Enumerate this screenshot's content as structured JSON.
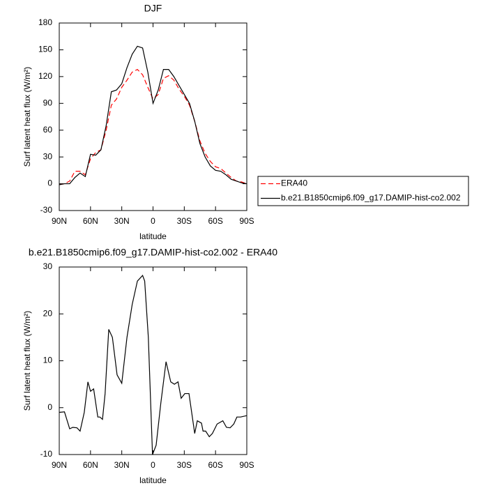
{
  "chart_data": [
    {
      "type": "line",
      "title": "DJF",
      "ylabel": "Surf latent heat flux (W/m²)",
      "xlabel": "latitude",
      "x": [
        90,
        85,
        80,
        75,
        70,
        65,
        60,
        55,
        50,
        45,
        40,
        35,
        30,
        25,
        20,
        15,
        10,
        5,
        0,
        -5,
        -10,
        -15,
        -20,
        -25,
        -30,
        -35,
        -40,
        -45,
        -50,
        -55,
        -60,
        -65,
        -70,
        -75,
        -80,
        -85,
        -90
      ],
      "series": [
        {
          "name": "ERA40",
          "color": "#ff0000",
          "dashed": true,
          "values": [
            -1,
            0,
            3,
            14,
            14,
            10,
            28,
            35,
            38,
            60,
            88,
            95,
            108,
            116,
            125,
            128,
            122,
            108,
            95,
            100,
            118,
            121,
            116,
            106,
            98,
            88,
            70,
            48,
            34,
            25,
            19,
            17,
            12,
            7,
            3,
            2,
            0
          ]
        },
        {
          "name": "b.e21.B1850cmip6.f09_g17.DAMIP-hist-co2.002",
          "color": "#000000",
          "dashed": false,
          "values": [
            -1,
            0,
            0,
            7,
            12,
            8,
            33,
            32,
            38,
            65,
            103,
            105,
            112,
            130,
            145,
            154,
            152,
            125,
            90,
            105,
            128,
            128,
            120,
            110,
            100,
            90,
            70,
            45,
            30,
            20,
            15,
            14,
            10,
            5,
            3,
            1,
            0
          ]
        }
      ],
      "xlim": [
        90,
        -90
      ],
      "xticks": [
        {
          "value": 90,
          "label": "90N"
        },
        {
          "value": 60,
          "label": "60N"
        },
        {
          "value": 30,
          "label": "30N"
        },
        0,
        {
          "value": -30,
          "label": "30S"
        },
        {
          "value": -60,
          "label": "60S"
        },
        {
          "value": -90,
          "label": "90S"
        }
      ],
      "ylim": [
        -30,
        180
      ],
      "yticks": [
        -30,
        0,
        30,
        60,
        90,
        120,
        150,
        180
      ],
      "legend": "outside-right"
    },
    {
      "type": "line",
      "title": "b.e21.B1850cmip6.f09_g17.DAMIP-hist-co2.002 - ERA40",
      "ylabel": "Surf latent heat flux (W/m²)",
      "xlabel": "latitude",
      "x": [
        90,
        85,
        80,
        77,
        73,
        70,
        66,
        62.5,
        60,
        57,
        53,
        51,
        48.5,
        46,
        42.5,
        39,
        34.5,
        30,
        25,
        20,
        15,
        10,
        8,
        4.5,
        0.5,
        -3,
        -7.5,
        -12.5,
        -17,
        -20.5,
        -24,
        -27,
        -30.5,
        -34.5,
        -40,
        -42.5,
        -46.5,
        -48,
        -50.5,
        -54,
        -57,
        -61.5,
        -67,
        -70.5,
        -74,
        -77.5,
        -80.5,
        -84,
        -90
      ],
      "series": [
        {
          "color": "#000000",
          "dashed": false,
          "values": [
            -1,
            -0.9,
            -4.5,
            -4.2,
            -4.3,
            -5,
            -1,
            5.5,
            3.5,
            4,
            -2,
            -2,
            -2.5,
            3,
            16.7,
            15,
            7,
            5.2,
            15,
            22,
            27,
            28.2,
            27,
            15,
            -10,
            -8,
            1,
            9.8,
            5.5,
            5,
            5.5,
            2,
            3,
            3,
            -5.5,
            -2.8,
            -3.3,
            -5,
            -5,
            -6.2,
            -5.5,
            -3.5,
            -2.8,
            -4.2,
            -4.3,
            -3.5,
            -2,
            -2,
            -1.7
          ]
        }
      ],
      "xlim": [
        90,
        -90
      ],
      "xticks": [
        {
          "value": 90,
          "label": "90N"
        },
        {
          "value": 60,
          "label": "60N"
        },
        {
          "value": 30,
          "label": "30N"
        },
        0,
        {
          "value": -30,
          "label": "30S"
        },
        {
          "value": -60,
          "label": "60S"
        },
        {
          "value": -90,
          "label": "90S"
        }
      ],
      "ylim": [
        -10,
        30
      ],
      "yticks": [
        -10,
        0,
        10,
        20,
        30
      ]
    }
  ]
}
